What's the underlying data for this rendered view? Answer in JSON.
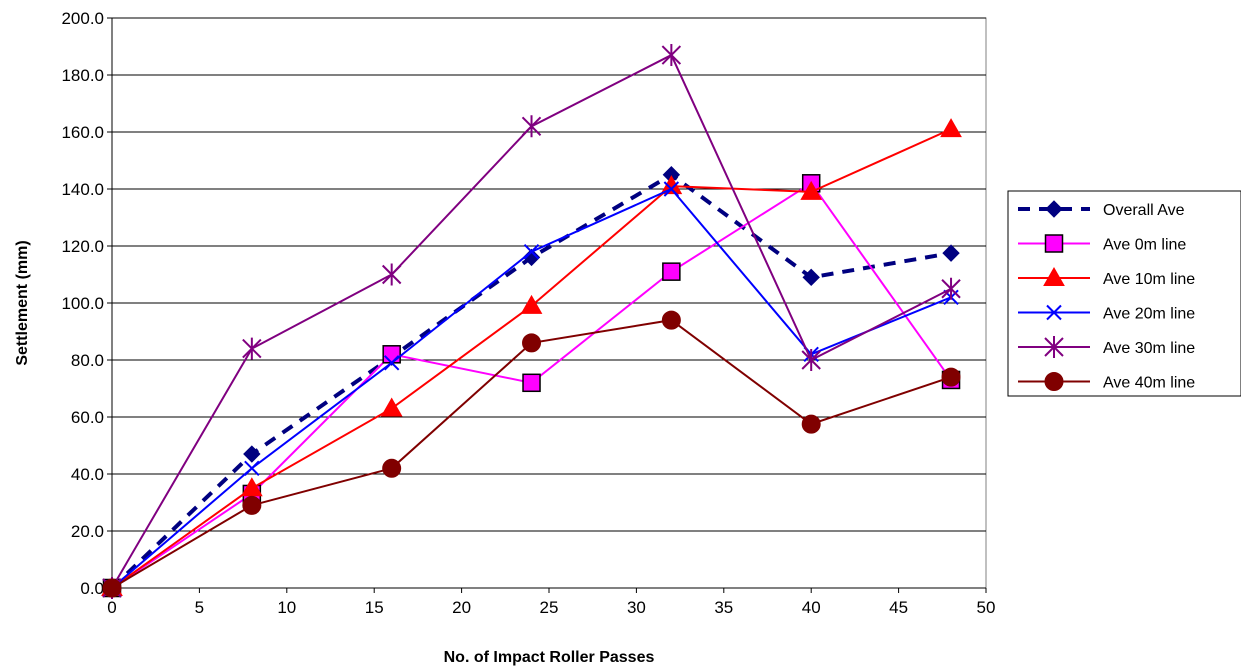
{
  "chart_data": {
    "type": "line",
    "title": "",
    "xlabel": "No. of Impact Roller Passes",
    "ylabel": "Settlement (mm)",
    "xlim": [
      0,
      50
    ],
    "ylim": [
      0,
      200
    ],
    "x_ticks": [
      0,
      5,
      10,
      15,
      20,
      25,
      30,
      35,
      40,
      45,
      50
    ],
    "y_ticks": [
      0,
      20,
      40,
      60,
      80,
      100,
      120,
      140,
      160,
      180,
      200
    ],
    "x_tick_labels": [
      "0",
      "5",
      "10",
      "15",
      "20",
      "25",
      "30",
      "35",
      "40",
      "45",
      "50"
    ],
    "y_tick_labels": [
      "0.0",
      "20.0",
      "40.0",
      "60.0",
      "80.0",
      "100.0",
      "120.0",
      "140.0",
      "160.0",
      "180.0",
      "200.0"
    ],
    "grid": "horizontal",
    "legend_position": "right",
    "series": [
      {
        "name": "Overall Ave",
        "color": "#000080",
        "marker": "diamond",
        "line": "dashed",
        "x": [
          0,
          8,
          16,
          24,
          32,
          40,
          48
        ],
        "y": [
          0,
          47,
          81,
          116,
          145,
          109,
          117.5
        ]
      },
      {
        "name": "Ave 0m line",
        "color": "#ff00ff",
        "marker": "square",
        "line": "solid",
        "x": [
          0,
          8,
          16,
          24,
          32,
          40,
          48
        ],
        "y": [
          0,
          33,
          82,
          72,
          111,
          142,
          73
        ]
      },
      {
        "name": "Ave 10m line",
        "color": "#ff0000",
        "marker": "triangle",
        "line": "solid",
        "x": [
          0,
          8,
          16,
          24,
          32,
          40,
          48
        ],
        "y": [
          0,
          35,
          63,
          99,
          141,
          139,
          161
        ]
      },
      {
        "name": "Ave 20m line",
        "color": "#0000ff",
        "marker": "x",
        "line": "solid",
        "x": [
          0,
          8,
          16,
          24,
          32,
          40,
          48
        ],
        "y": [
          0,
          42,
          79,
          118,
          140,
          82,
          102
        ]
      },
      {
        "name": "Ave 30m line",
        "color": "#800080",
        "marker": "asterisk",
        "line": "solid",
        "x": [
          0,
          8,
          16,
          24,
          32,
          40,
          48
        ],
        "y": [
          0,
          84,
          110,
          162,
          187,
          80,
          105
        ]
      },
      {
        "name": "Ave 40m line",
        "color": "#800000",
        "marker": "circle",
        "line": "solid",
        "x": [
          0,
          8,
          16,
          24,
          32,
          40,
          48
        ],
        "y": [
          0,
          29,
          42,
          86,
          94,
          57.5,
          74
        ]
      }
    ]
  }
}
